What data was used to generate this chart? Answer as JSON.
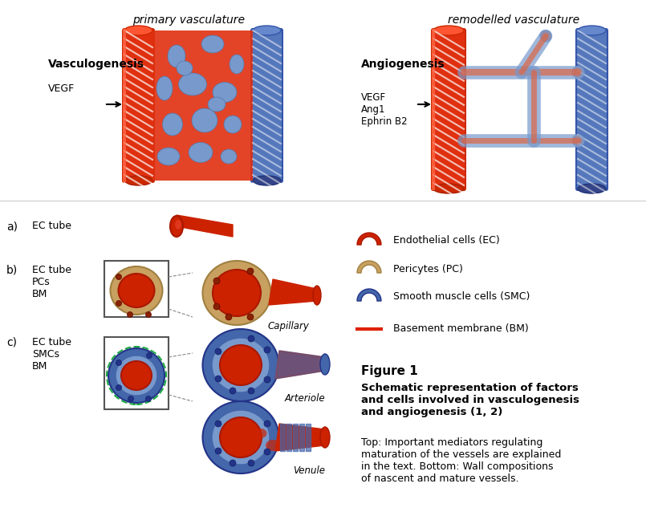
{
  "title": "",
  "bg_color": "#ffffff",
  "primary_vasc_label": "primary vasculature",
  "remodelled_vasc_label": "remodelled vasculature",
  "vasculogenesis_label": "Vasculogenesis",
  "vegf_label": "VEGF",
  "angiogenesis_label": "Angiogenesis",
  "vegf2_label": "VEGF\nAng1\nEphrin B2",
  "legend_items": [
    {
      "label": "Endothelial cells (EC)",
      "color": "#cc2200",
      "type": "arch_red"
    },
    {
      "label": "Pericytes (PC)",
      "color": "#b8a060",
      "type": "arch_tan"
    },
    {
      "label": "Smooth muscle cells (SMC)",
      "color": "#4466aa",
      "type": "arch_blue"
    },
    {
      "label": "Basement membrane (BM)",
      "color": "#dd2200",
      "type": "line_red"
    }
  ],
  "fig1_title": "Figure 1",
  "fig1_bold": "Schematic representation of factors\nand cells involved in vasculogenesis\nand angiogenesis (1, 2)",
  "fig1_text": "Top: Important mediators regulating\nmaturation of the vessels are explained\nin the text. Bottom: Wall compositions\nof nascent and mature vessels.",
  "labels_abc": [
    "a)",
    "b)",
    "c)"
  ],
  "labels_abc_text": [
    [
      "EC tube"
    ],
    [
      "EC tube",
      "PCs",
      "BM"
    ],
    [
      "EC tube",
      "SMCs",
      "BM"
    ]
  ],
  "capillary_label": "Capillary",
  "arteriole_label": "Arteriole",
  "venule_label": "Venule"
}
